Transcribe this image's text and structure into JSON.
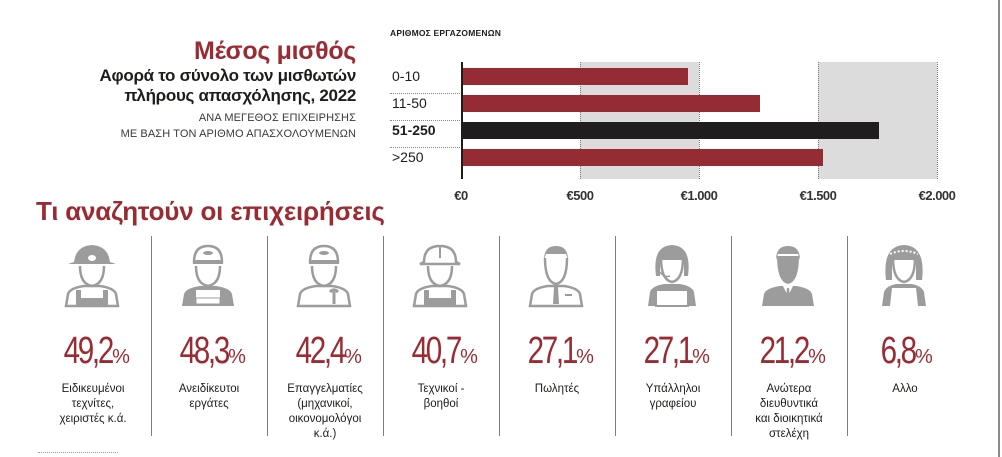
{
  "header": {
    "title": "Μέσος μισθός",
    "subtitle_line1": "Αφορά το σύνολο των μισθωτών",
    "subtitle_line2": "πλήρους απασχόλησης, 2022",
    "note_line1": "ΑΝΑ ΜΕΓΕΘΟΣ ΕΠΙΧΕΙΡΗΣΗΣ",
    "note_line2": "ΜΕ ΒΑΣΗ ΤΟΝ ΑΡΙΘΜΟ ΑΠΑΣΧΟΛΟΥΜΕΝΩΝ"
  },
  "chart_data": {
    "type": "bar",
    "orientation": "horizontal",
    "title": "Μέσος μισθός",
    "subtitle": "Αφορά το σύνολο των μισθωτών πλήρους απασχόλησης, 2022",
    "ylabel": "ΑΡΙΘΜΟΣ ΕΡΓΑΖΟΜΕΝΩΝ",
    "xlabel": "",
    "categories": [
      "0-10",
      "11-50",
      "51-250",
      ">250"
    ],
    "values": [
      950,
      1250,
      1750,
      1515
    ],
    "highlight": "51-250",
    "xlim": [
      0,
      2000
    ],
    "xticks": [
      "€0",
      "€500",
      "€1.000",
      "€1.500",
      "€2.000"
    ],
    "grid": "dotted vertical at each tick; shaded bands 500–1000 and 1500–2000",
    "colors": {
      "bar": "#952c33",
      "highlight": "#1f1d1e",
      "band": "#dcdcdc"
    }
  },
  "section": {
    "title": "Τι αναζητούν οι επιχειρήσεις"
  },
  "jobs": [
    {
      "icon": "miner-worker-icon",
      "value": "49,2",
      "symbol": "%",
      "label": [
        "Ειδικευμένοι",
        "τεχνίτες,",
        "χειριστές κ.ά."
      ]
    },
    {
      "icon": "cap-worker-icon",
      "value": "48,3",
      "symbol": "%",
      "label": [
        "Ανειδίκευτοι",
        "εργάτες"
      ]
    },
    {
      "icon": "mechanic-wrench-icon",
      "value": "42,4",
      "symbol": "%",
      "label": [
        "Επαγγελματίες",
        "(μηχανικοί,",
        "οικονομολόγοι",
        "κ.ά.)"
      ]
    },
    {
      "icon": "hardhat-worker-icon",
      "value": "40,7",
      "symbol": "%",
      "label": [
        "Τεχνικοί -",
        "βοηθοί"
      ]
    },
    {
      "icon": "salesman-tie-icon",
      "value": "27,1",
      "symbol": "%",
      "label": [
        "Πωλητές"
      ]
    },
    {
      "icon": "office-headset-laptop-icon",
      "value": "27,1",
      "symbol": "%",
      "label": [
        "Υπάλληλοι",
        "γραφείου"
      ]
    },
    {
      "icon": "executive-suit-icon",
      "value": "21,2",
      "symbol": "%",
      "label": [
        "Ανώτερα",
        "διευθυντικά",
        "και διοικητικά",
        "στελέχη"
      ]
    },
    {
      "icon": "maid-apron-icon",
      "value": "6,8",
      "symbol": "%",
      "label": [
        "Αλλο"
      ]
    }
  ]
}
